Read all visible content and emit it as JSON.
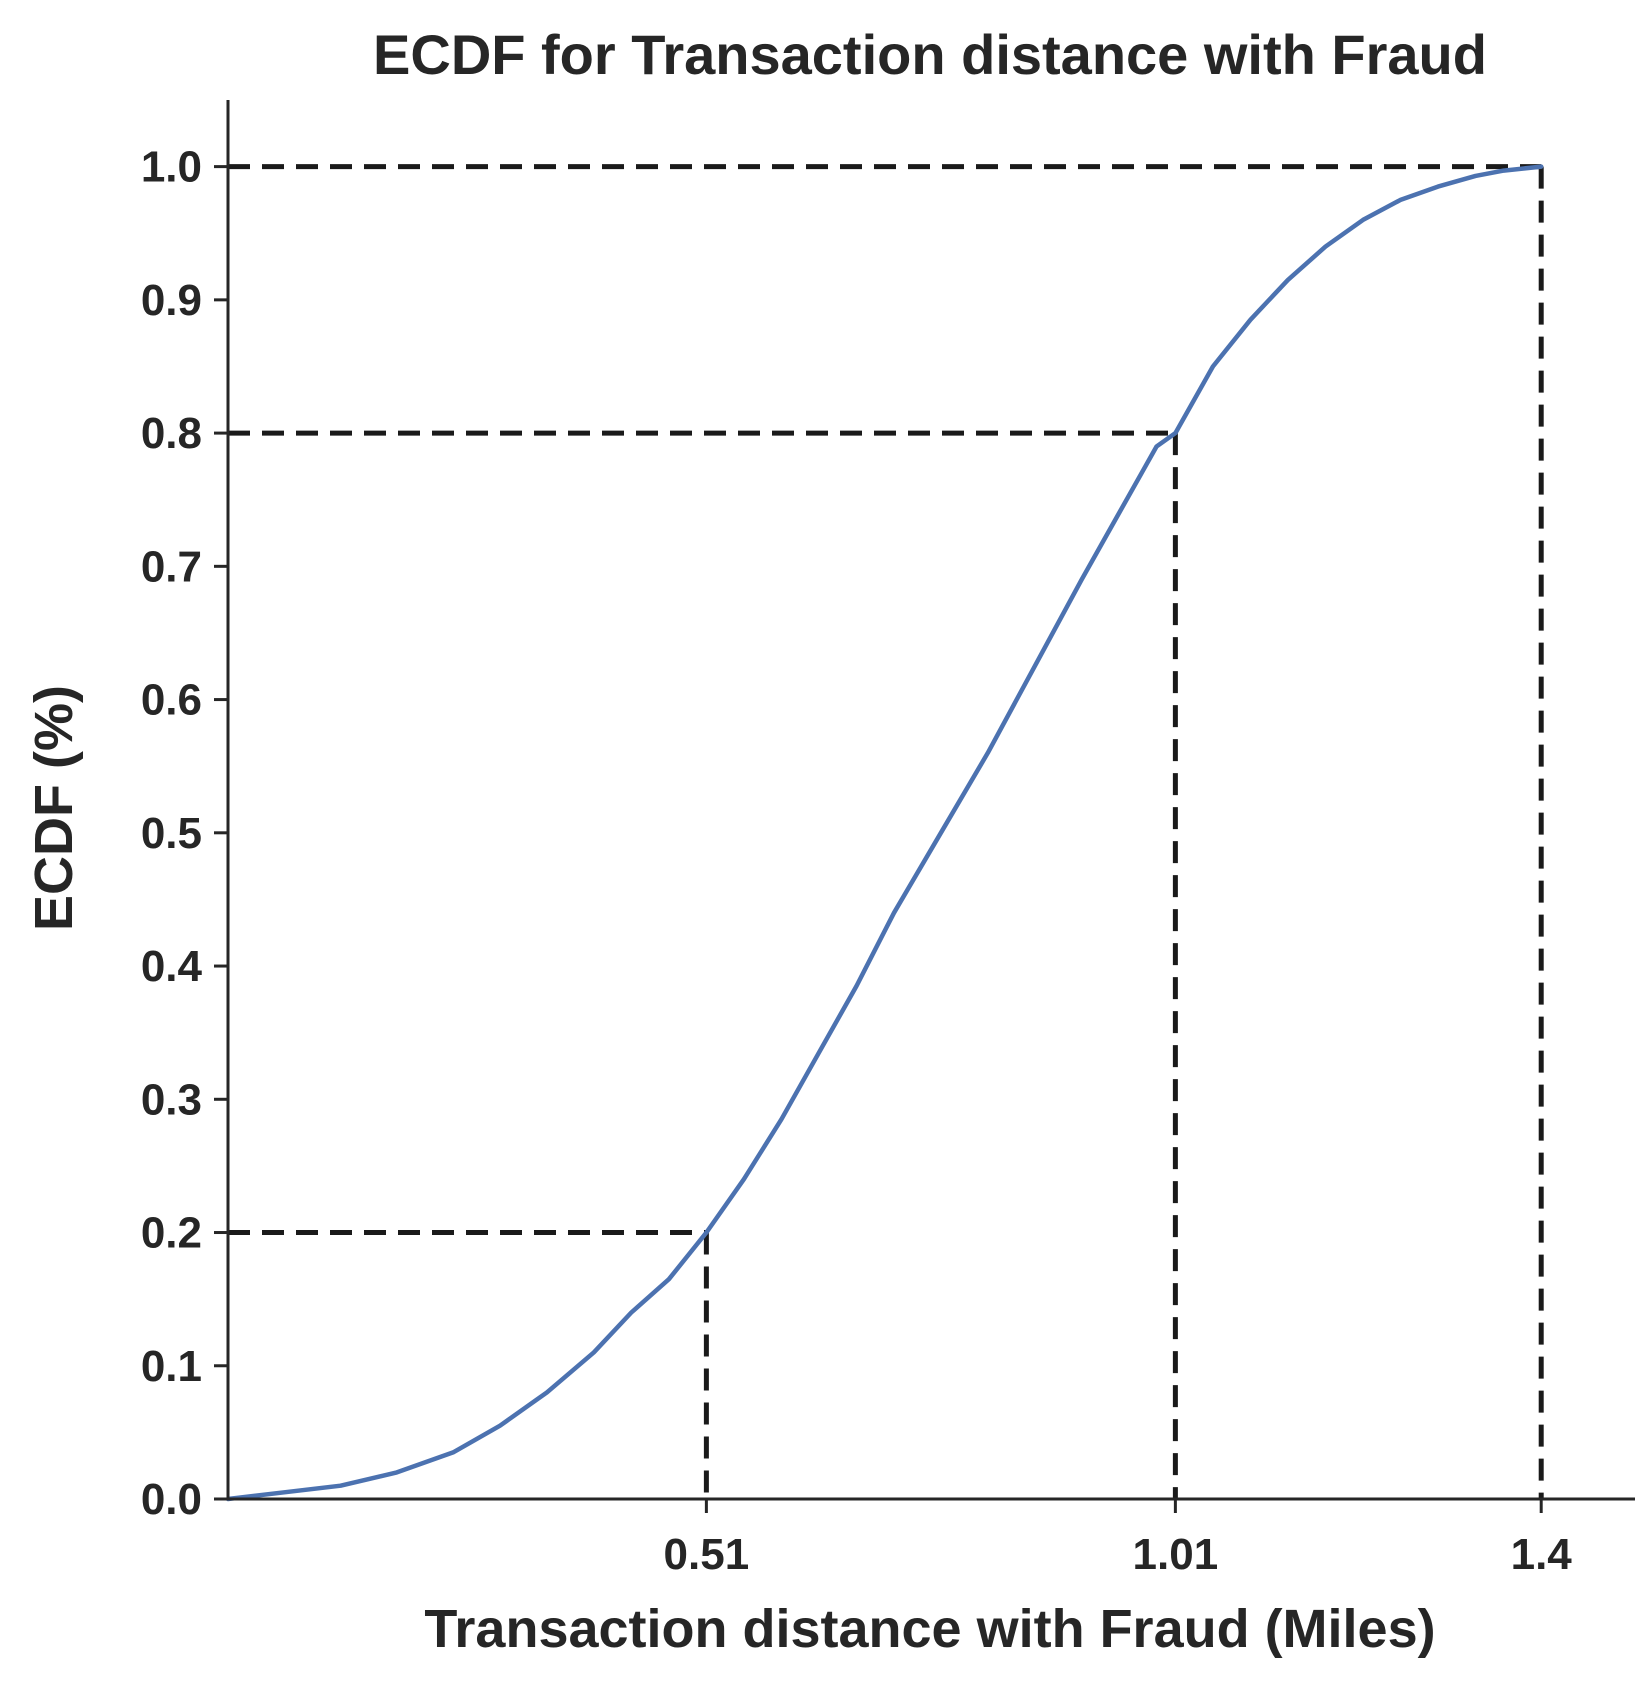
{
  "colors": {
    "curve": "#4c72b0",
    "axis": "#262626",
    "guide": "#1a1a1a",
    "background": "#ffffff"
  },
  "chart_data": {
    "type": "line",
    "title": "ECDF for Transaction distance with Fraud",
    "xlabel": "Transaction distance with Fraud (Miles)",
    "ylabel": "ECDF (%)",
    "xlim": [
      0.0,
      1.5
    ],
    "ylim": [
      0.0,
      1.05
    ],
    "xticks": [
      {
        "value": 0.51,
        "label": "0.51"
      },
      {
        "value": 1.01,
        "label": "1.01"
      },
      {
        "value": 1.4,
        "label": "1.4"
      }
    ],
    "yticks": [
      {
        "value": 0.0,
        "label": "0.0"
      },
      {
        "value": 0.1,
        "label": "0.1"
      },
      {
        "value": 0.2,
        "label": "0.2"
      },
      {
        "value": 0.3,
        "label": "0.3"
      },
      {
        "value": 0.4,
        "label": "0.4"
      },
      {
        "value": 0.5,
        "label": "0.5"
      },
      {
        "value": 0.6,
        "label": "0.6"
      },
      {
        "value": 0.7,
        "label": "0.7"
      },
      {
        "value": 0.8,
        "label": "0.8"
      },
      {
        "value": 0.9,
        "label": "0.9"
      },
      {
        "value": 1.0,
        "label": "1.0"
      }
    ],
    "grid": false,
    "series": [
      {
        "x": [
          0.0,
          0.06,
          0.12,
          0.18,
          0.24,
          0.29,
          0.34,
          0.39,
          0.43,
          0.47,
          0.51,
          0.55,
          0.59,
          0.63,
          0.67,
          0.71,
          0.76,
          0.81,
          0.86,
          0.91,
          0.95,
          0.99,
          1.01,
          1.05,
          1.09,
          1.13,
          1.17,
          1.21,
          1.25,
          1.29,
          1.33,
          1.36,
          1.4
        ],
        "y": [
          0.0,
          0.005,
          0.01,
          0.02,
          0.035,
          0.055,
          0.08,
          0.11,
          0.14,
          0.165,
          0.2,
          0.24,
          0.285,
          0.335,
          0.385,
          0.44,
          0.5,
          0.56,
          0.625,
          0.69,
          0.74,
          0.79,
          0.8,
          0.85,
          0.885,
          0.915,
          0.94,
          0.96,
          0.975,
          0.985,
          0.993,
          0.997,
          1.0
        ]
      }
    ],
    "guides": [
      {
        "x": 0.51,
        "y": 0.2
      },
      {
        "x": 1.01,
        "y": 0.8
      },
      {
        "x": 1.4,
        "y": 1.0
      }
    ]
  }
}
